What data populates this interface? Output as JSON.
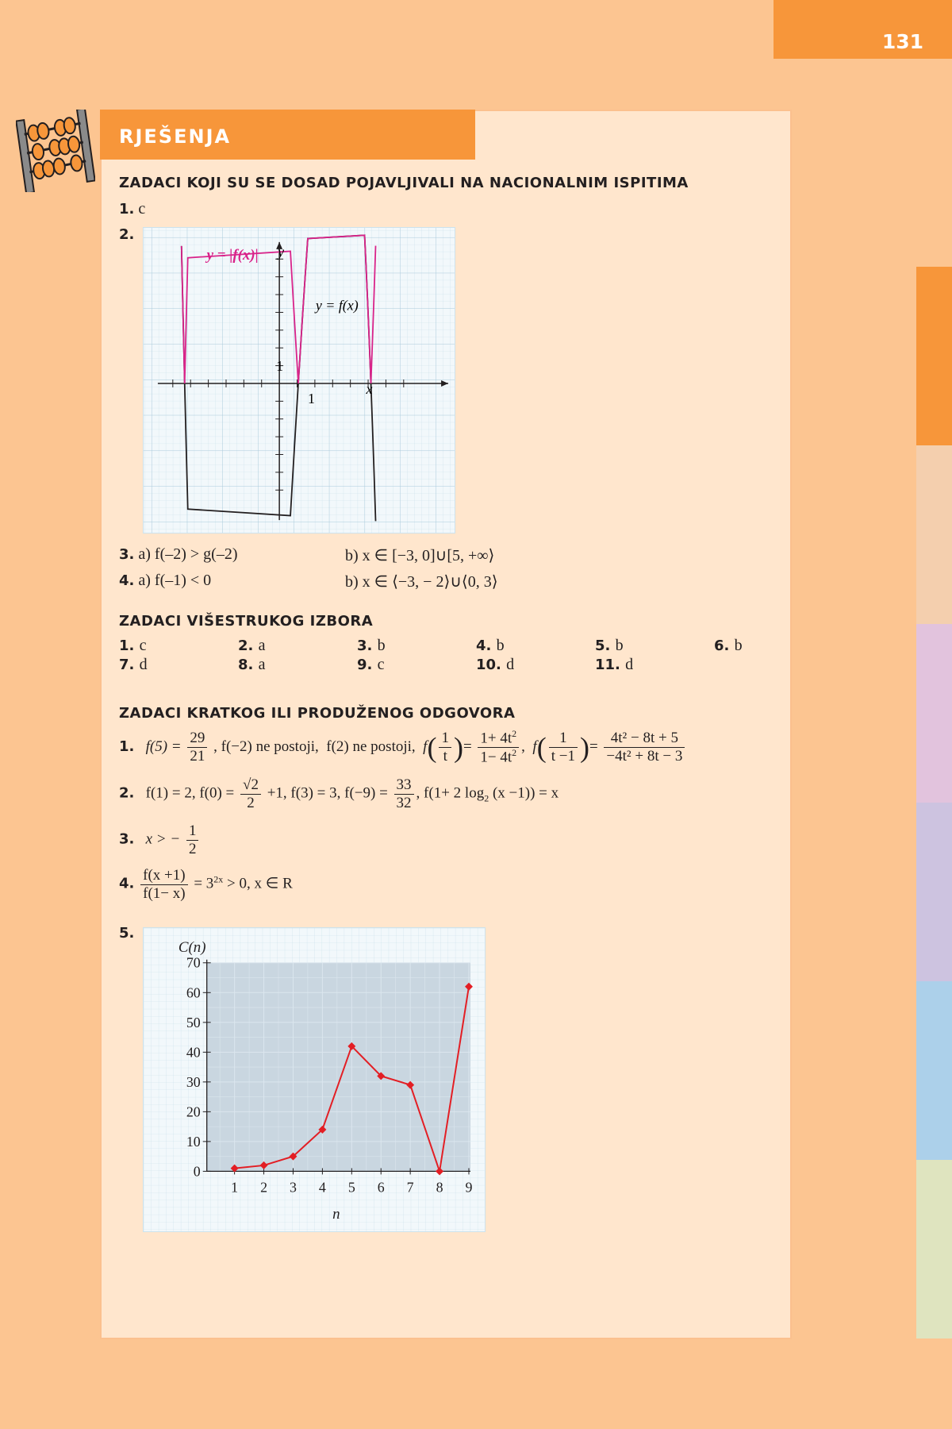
{
  "page_number": "131",
  "section_title": "RJEŠENJA",
  "colors": {
    "orange": "#f7963a",
    "magenta": "#d9238a",
    "red": "#e31e24"
  },
  "side_tab_colors": [
    "#f7963a",
    "#f4cfae",
    "#e2c3dd",
    "#cdc3e0",
    "#acd0ea",
    "#dfe4bf"
  ],
  "nat": {
    "heading": "ZADACI KOJI SU SE DOSAD POJAVLJIVALI NA NACIONALNIM ISPITIMA",
    "q1_num": "1.",
    "q1_ans": "c",
    "q2_num": "2.",
    "graph_label_abs": "y = |f(x)|",
    "graph_label_f": "y = f(x)",
    "graph_axis_x": "x",
    "graph_axis_y": "y",
    "graph_tick_x": "1",
    "graph_tick_y": "1",
    "q3_num": "3.",
    "q3_a": "a) f(–2) > g(–2)",
    "q3_b": "b) x ∈ [−3, 0]∪[5, +∞⟩",
    "q4_num": "4.",
    "q4_a": "a) f(–1) < 0",
    "q4_b": "b) x ∈ ⟨−3, − 2⟩∪⟨0, 3⟩"
  },
  "mc": {
    "heading": "ZADACI VIŠESTRUKOG IZBORA",
    "items": [
      {
        "num": "1.",
        "ans": "c"
      },
      {
        "num": "2.",
        "ans": "a"
      },
      {
        "num": "3.",
        "ans": "b"
      },
      {
        "num": "4.",
        "ans": "b"
      },
      {
        "num": "5.",
        "ans": "b"
      },
      {
        "num": "6.",
        "ans": "b"
      },
      {
        "num": "7.",
        "ans": "d"
      },
      {
        "num": "8.",
        "ans": "a"
      },
      {
        "num": "9.",
        "ans": "c"
      },
      {
        "num": "10.",
        "ans": "d"
      },
      {
        "num": "11.",
        "ans": "d"
      }
    ]
  },
  "short": {
    "heading": "ZADACI KRATKOG ILI PRODUŽENOG ODGOVORA",
    "q1_num": "1.",
    "q1_f5": "f(5) =",
    "q1_f5_n": "29",
    "q1_f5_d": "21",
    "q1_fm2": ", f(−2) ne postoji,",
    "q1_f2": "f(2) ne postoji,",
    "q1_ft_n": "1",
    "q1_ft_d": "t",
    "q1_r1_n": "1+ 4t",
    "q1_r1_d": "1− 4t",
    "q1_ft1_n": "1",
    "q1_ft1_d": "t −1",
    "q1_r2_n": "4t² − 8t + 5",
    "q1_r2_d": "−4t² + 8t − 3",
    "q2_num": "2.",
    "q2_a": "f(1) = 2,  f(0) =",
    "q2_sqrt": "√2",
    "q2_sqrt_d": "2",
    "q2_b": "+1,  f(3) = 3,  f(−9) =",
    "q2_c_n": "33",
    "q2_c_d": "32",
    "q2_d": ",  f(1+ 2 log",
    "q2_d_sub": "2",
    "q2_e": "(x −1)) = x",
    "q3_num": "3.",
    "q3_a": "x > −",
    "q3_n": "1",
    "q3_d": "2",
    "q4_num": "4.",
    "q4_n": "f(x +1)",
    "q4_d": "f(1− x)",
    "q4_r": "= 3",
    "q4_sup": "2x",
    "q4_rest": " > 0,  x ∈ R",
    "q5_num": "5."
  },
  "chart_data": {
    "type": "line",
    "title": "",
    "xlabel": "n",
    "ylabel": "C(n)",
    "x": [
      1,
      2,
      3,
      4,
      5,
      6,
      7,
      8,
      9
    ],
    "y": [
      1,
      2,
      5,
      14,
      42,
      32,
      29,
      0,
      62
    ],
    "xlim": [
      0,
      9
    ],
    "ylim": [
      0,
      70
    ],
    "yticks": [
      0,
      10,
      20,
      30,
      40,
      50,
      60,
      70
    ],
    "xticks": [
      1,
      2,
      3,
      4,
      5,
      6,
      7,
      8,
      9
    ],
    "grid": true,
    "color": "#e31e24"
  }
}
